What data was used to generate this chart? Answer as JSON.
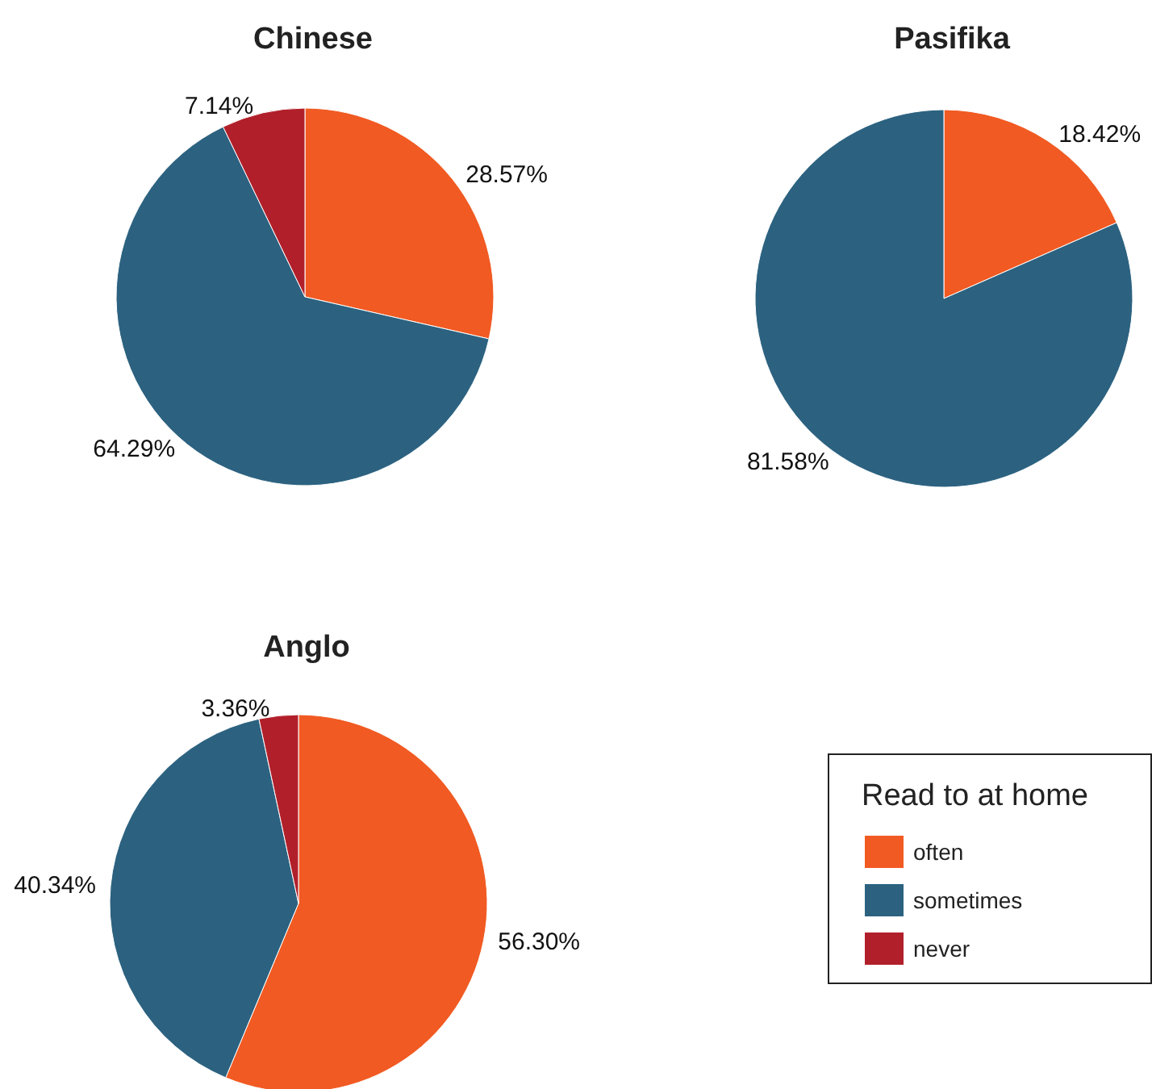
{
  "chart_data": [
    {
      "type": "pie",
      "title": "Chinese",
      "categories": [
        null,
        null,
        null
      ],
      "values": [
        28.57,
        64.29,
        7.14
      ],
      "colors": [
        "#f15a22",
        "#2c6280",
        "#b1202a"
      ],
      "value_labels": [
        "28.57%",
        "64.29%",
        "7.14%"
      ]
    },
    {
      "type": "pie",
      "title": "Pasifika",
      "categories": [
        null,
        null
      ],
      "values": [
        18.42,
        81.58
      ],
      "colors": [
        "#f15a22",
        "#2c6280"
      ],
      "value_labels": [
        "18.42%",
        "81.58%"
      ]
    },
    {
      "type": "pie",
      "title": "Anglo",
      "categories": [
        "often",
        "sometimes",
        "never"
      ],
      "values": [
        56.3,
        40.34,
        3.36
      ],
      "colors": [
        "#f15a22",
        "#2c6280",
        "#b1202a"
      ],
      "value_labels": [
        "56.30%",
        "40.34%",
        "3.36%"
      ],
      "legend": "right",
      "legend_title": "Read to at home"
    }
  ]
}
